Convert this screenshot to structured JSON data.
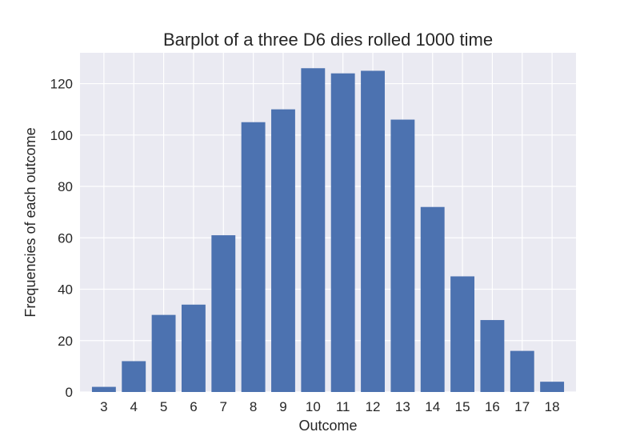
{
  "chart_data": {
    "type": "bar",
    "title": "Barplot of a three D6 dies rolled 1000 time",
    "xlabel": "Outcome",
    "ylabel": "Frequencies of each outcome",
    "categories": [
      "3",
      "4",
      "5",
      "6",
      "7",
      "8",
      "9",
      "10",
      "11",
      "12",
      "13",
      "14",
      "15",
      "16",
      "17",
      "18"
    ],
    "values": [
      2,
      12,
      30,
      34,
      61,
      105,
      110,
      126,
      124,
      125,
      106,
      72,
      45,
      28,
      16,
      4
    ],
    "ylim": [
      0,
      132
    ],
    "yticks": [
      0,
      20,
      40,
      60,
      80,
      100,
      120
    ],
    "ytick_labels": [
      "0",
      "20",
      "40",
      "60",
      "80",
      "100",
      "120"
    ],
    "grid": true,
    "style": {
      "bar_color": "#4C72B0",
      "plot_background": "#EAEAF2",
      "grid_color": "#FFFFFF"
    }
  }
}
